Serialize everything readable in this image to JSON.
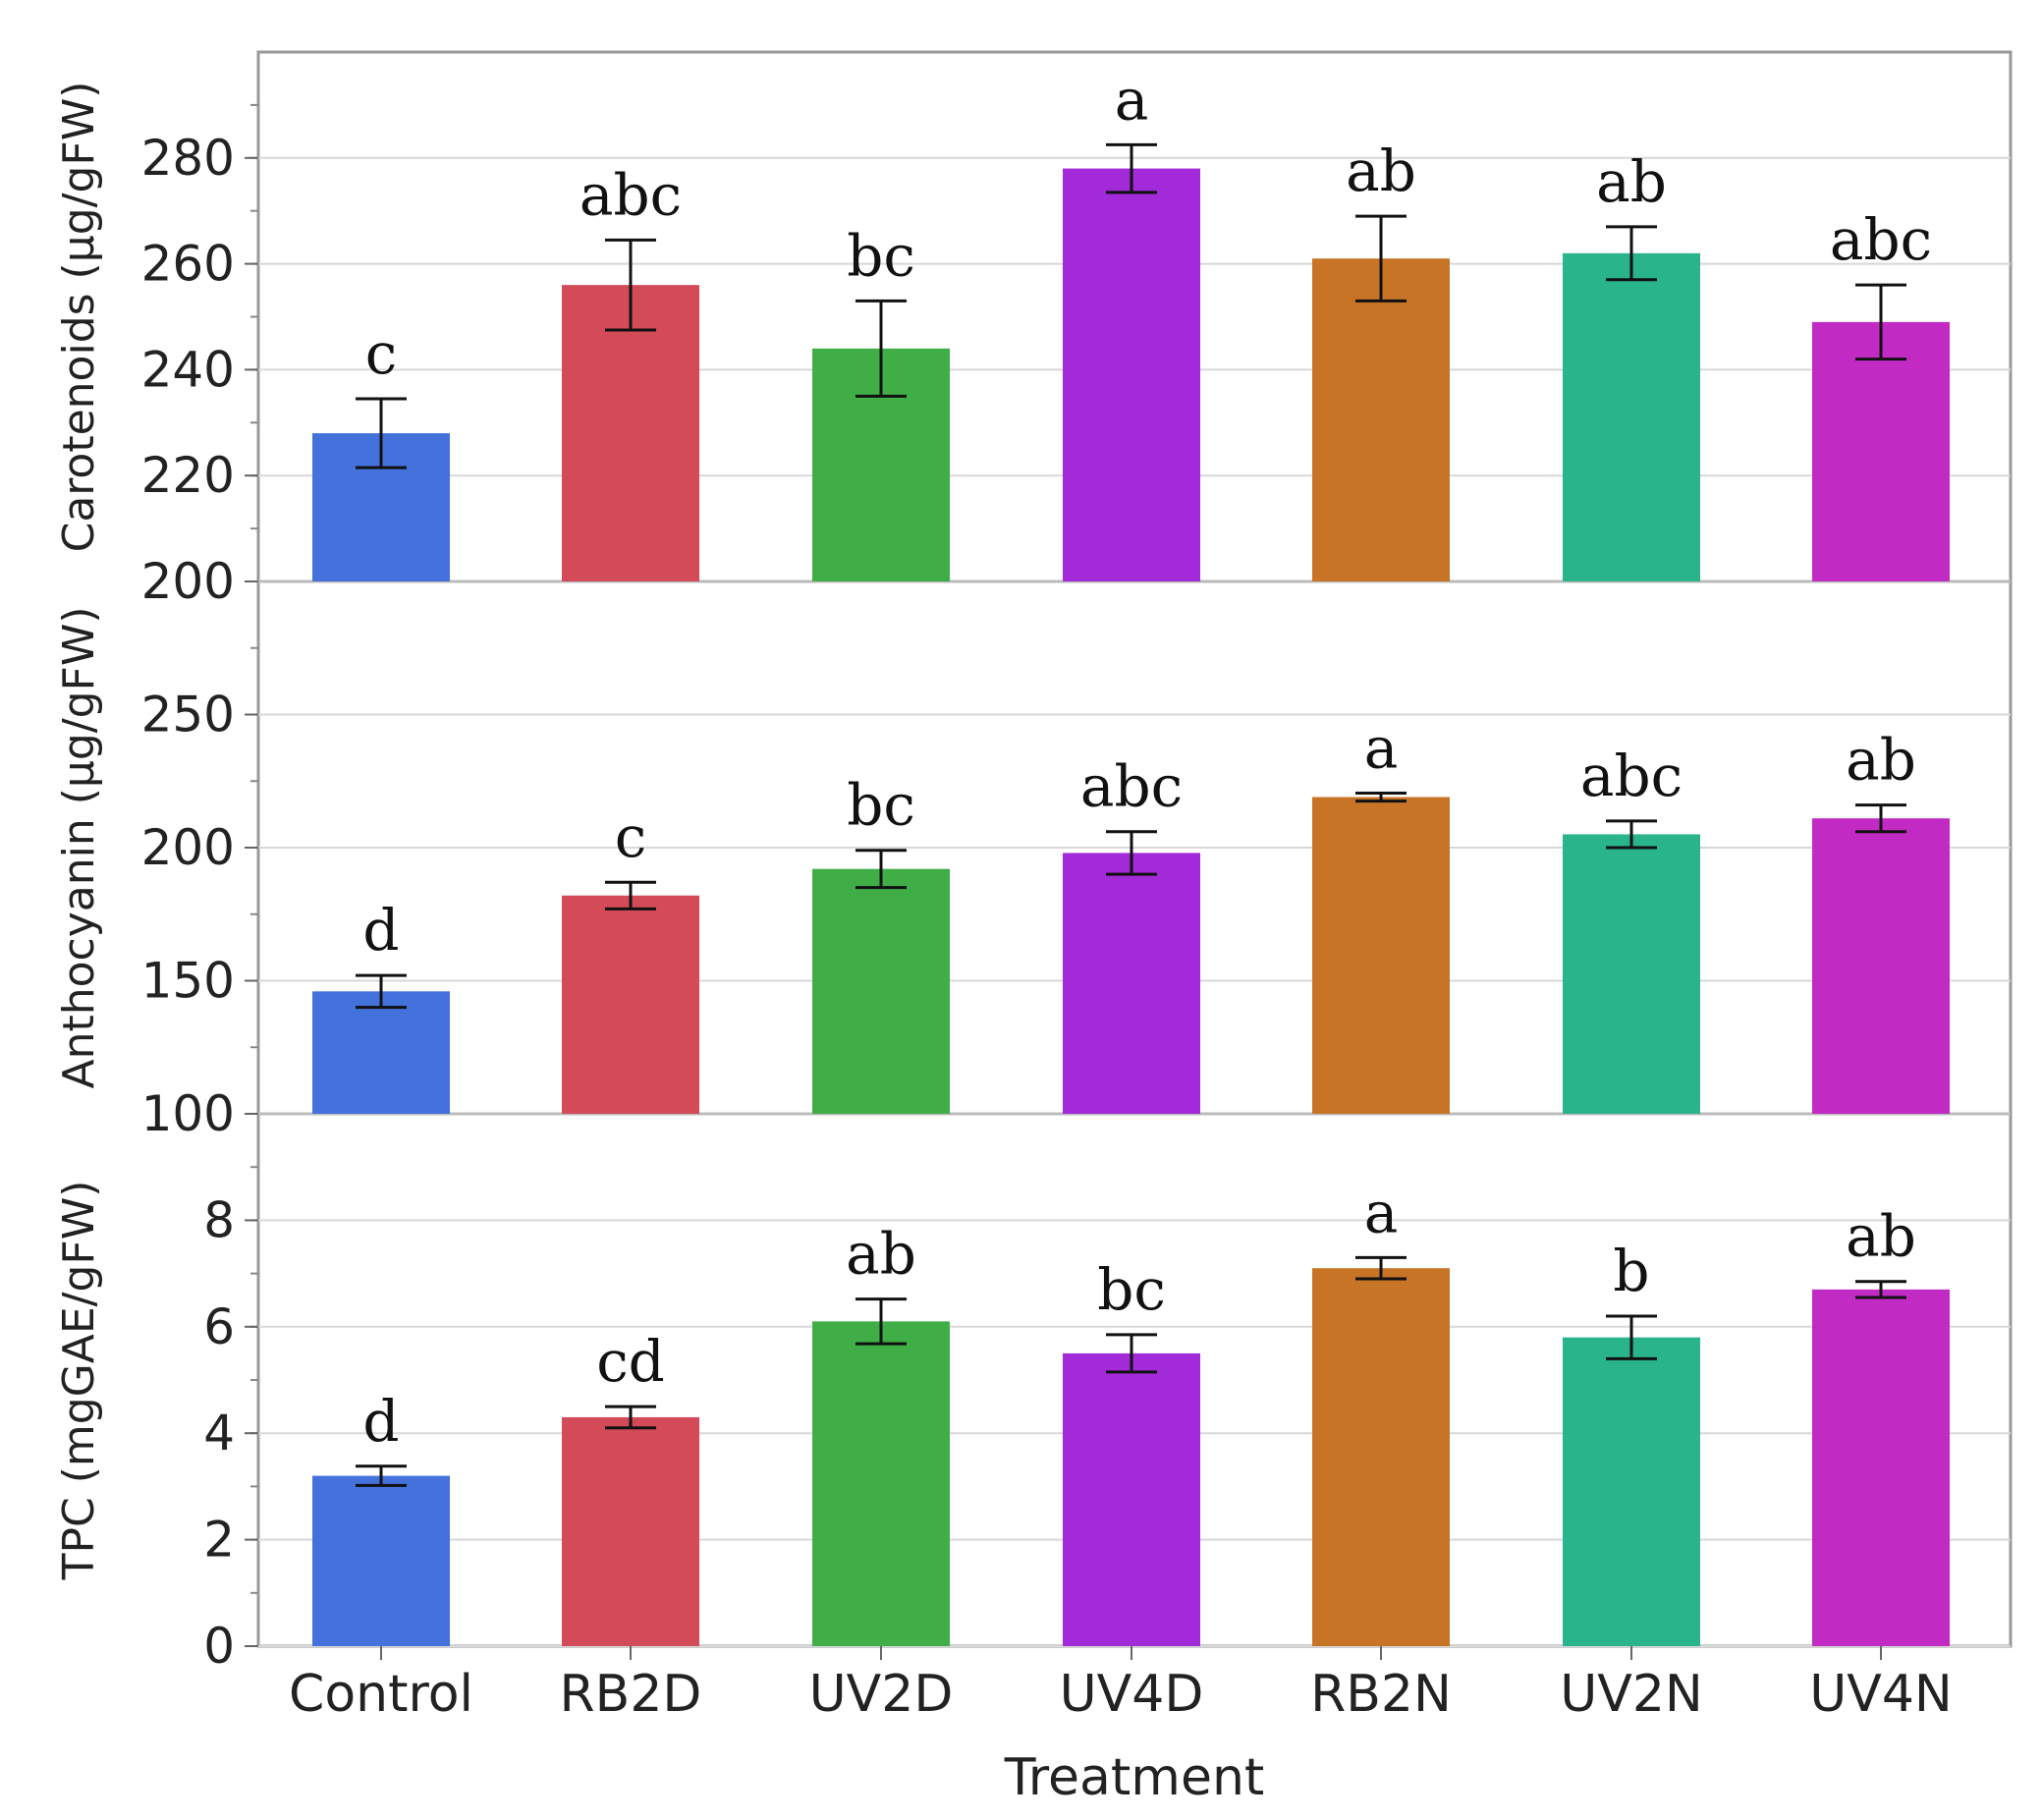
{
  "chart_data": {
    "type": "bar",
    "categories": [
      "Control",
      "RB2D",
      "UV2D",
      "UV4D",
      "RB2N",
      "UV2N",
      "UV4N"
    ],
    "colors": [
      "#4472dc",
      "#d34a58",
      "#3fae47",
      "#a32ad9",
      "#c87427",
      "#29b48c",
      "#c22ac4"
    ],
    "xlabel": "Treatment",
    "panels": [
      {
        "ylabel": "Carotenoids (µg/gFW)",
        "ylim": [
          200,
          300
        ],
        "yticks": [
          200,
          220,
          240,
          260,
          280
        ],
        "values": [
          228,
          256,
          244,
          278,
          261,
          262,
          249
        ],
        "errors": [
          6.5,
          8.5,
          9,
          4.5,
          8,
          5,
          7
        ],
        "letters": [
          "c",
          "abc",
          "bc",
          "a",
          "ab",
          "ab",
          "abc"
        ]
      },
      {
        "ylabel": "Anthocyanin (µg/gFW)",
        "ylim": [
          100,
          300
        ],
        "yticks": [
          100,
          150,
          200,
          250
        ],
        "values": [
          146,
          182,
          192,
          198,
          219,
          205,
          211
        ],
        "errors": [
          6,
          5,
          7,
          8,
          1.5,
          5,
          5
        ],
        "letters": [
          "d",
          "c",
          "bc",
          "abc",
          "a",
          "abc",
          "ab"
        ]
      },
      {
        "ylabel": "TPC (mgGAE/gFW)",
        "ylim": [
          0,
          10
        ],
        "yticks": [
          0,
          2,
          4,
          6,
          8
        ],
        "values": [
          3.2,
          4.3,
          6.1,
          5.5,
          7.1,
          5.8,
          6.7
        ],
        "errors": [
          0.18,
          0.2,
          0.42,
          0.35,
          0.2,
          0.4,
          0.15
        ],
        "letters": [
          "d",
          "cd",
          "ab",
          "bc",
          "a",
          "b",
          "ab"
        ]
      }
    ]
  }
}
